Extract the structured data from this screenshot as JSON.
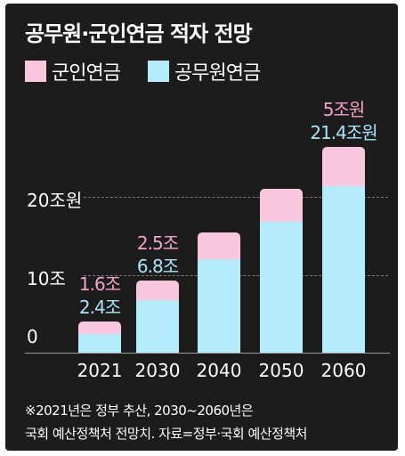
{
  "colors": {
    "military": "#f9c7dd",
    "civil": "#b4ecfb",
    "military_label": "#f3a3c6",
    "civil_label": "#a9e4f7"
  },
  "chart_data": {
    "type": "bar",
    "stacked": true,
    "title": "공무원·군인연금 적자 전망",
    "legend": [
      "군인연금",
      "공무원연금"
    ],
    "legend_position": "top-left",
    "categories": [
      "2021",
      "2030",
      "2040",
      "2050",
      "2060"
    ],
    "series": [
      {
        "name": "공무원연금",
        "values": [
          2.4,
          6.8,
          12.0,
          16.8,
          21.4
        ]
      },
      {
        "name": "군인연금",
        "values": [
          1.6,
          2.5,
          3.4,
          4.2,
          5.0
        ]
      }
    ],
    "data_labels": [
      {
        "category": "2021",
        "military": "1.6조",
        "civil": "2.4조"
      },
      {
        "category": "2030",
        "military": "2.5조",
        "civil": "6.8조"
      },
      {
        "category": "2060",
        "military": "5조원",
        "civil": "21.4조원"
      }
    ],
    "ytick_labels": [
      "0",
      "10조",
      "20조원"
    ],
    "ytick_values": [
      0,
      10,
      20
    ],
    "ylim": [
      0,
      26
    ],
    "grid": true
  },
  "footnote": {
    "line1": "※2021년은 정부 추산, 2030~2060년은",
    "line2": "국회 예산정책처 전망치. 자료=정부·국회 예산정책처"
  }
}
